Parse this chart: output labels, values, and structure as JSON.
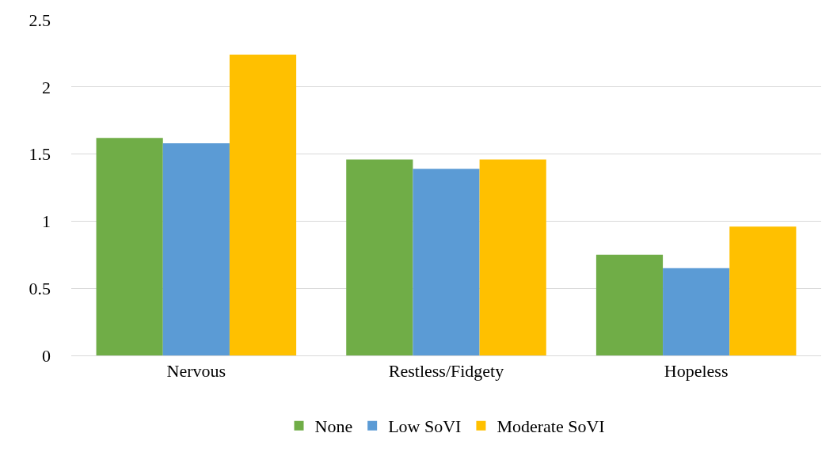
{
  "chart_data": {
    "type": "bar",
    "categories": [
      "Nervous",
      "Restless/Fidgety",
      "Hopeless"
    ],
    "series": [
      {
        "name": "None",
        "color": "#70ad47",
        "values": [
          1.62,
          1.46,
          0.75
        ]
      },
      {
        "name": "Low SoVI",
        "color": "#5b9bd5",
        "values": [
          1.58,
          1.39,
          0.65
        ]
      },
      {
        "name": "Moderate SoVI",
        "color": "#ffc000",
        "values": [
          2.24,
          1.46,
          0.96
        ]
      }
    ],
    "ylim": [
      0,
      2.5
    ],
    "yticks": [
      0,
      0.5,
      1,
      1.5,
      2,
      2.5
    ],
    "grid": "y",
    "legend": "bottom"
  }
}
